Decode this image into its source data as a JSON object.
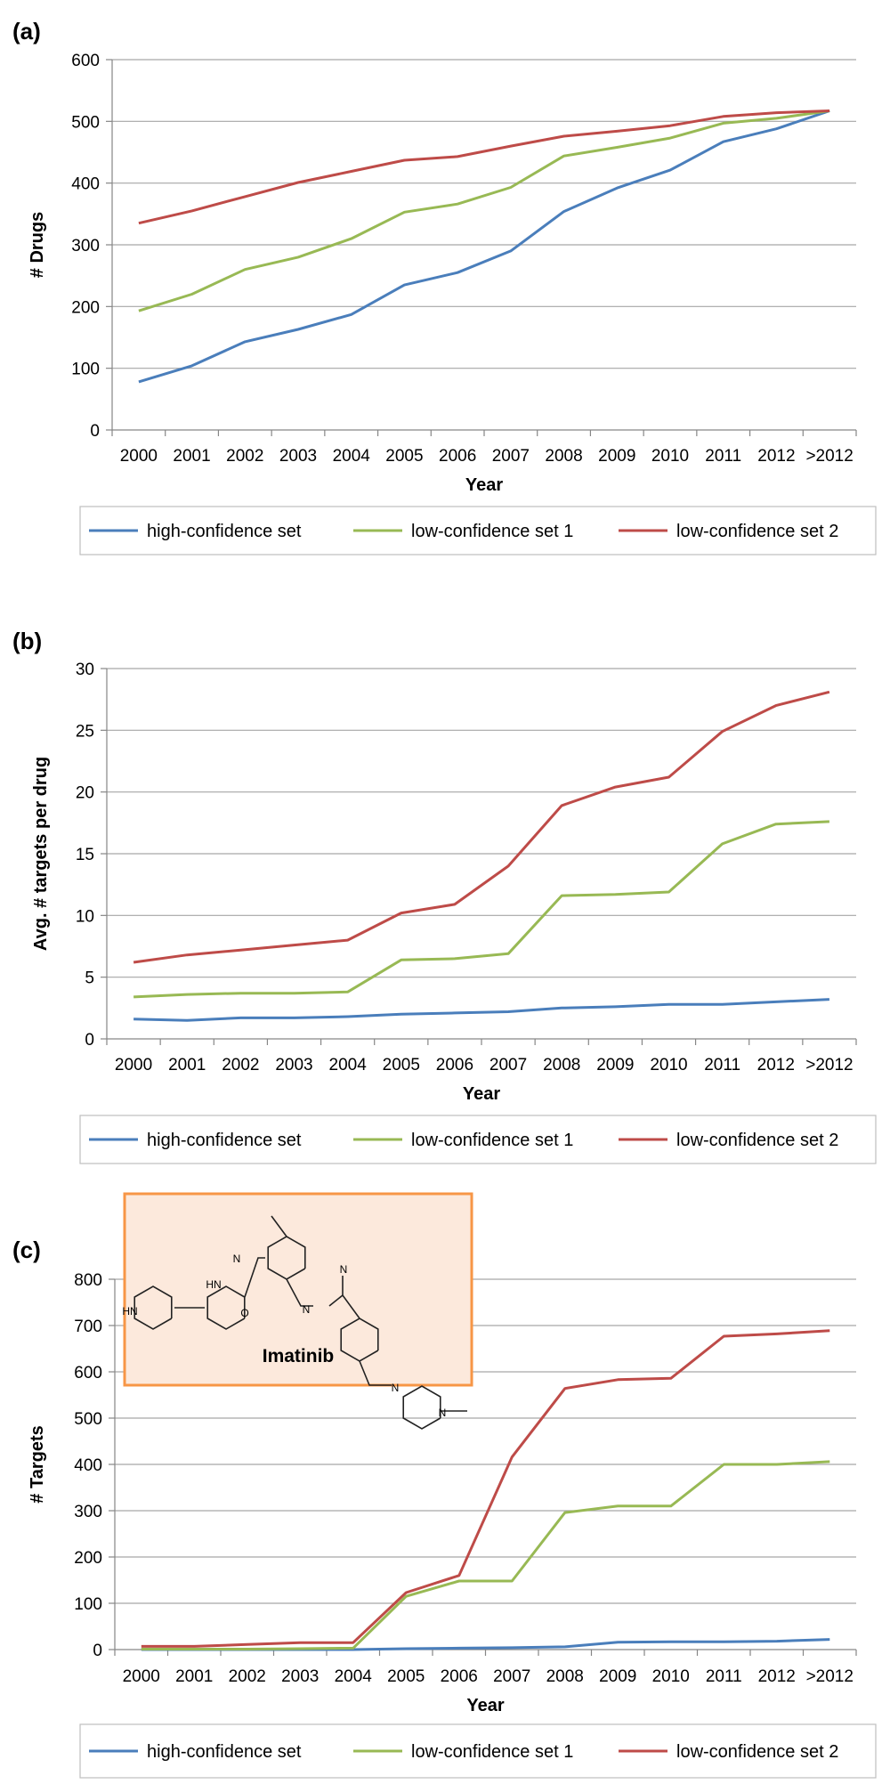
{
  "colors": {
    "high": "#4a7ebb",
    "low1": "#98b954",
    "low2": "#be4b48",
    "grid": "#a6a6a6",
    "inset_fill": "#fce9dc",
    "inset_border": "#f79646"
  },
  "chart_data": [
    {
      "type": "line",
      "panel_label": "(a)",
      "categories": [
        "2000",
        "2001",
        "2002",
        "2003",
        "2004",
        "2005",
        "2006",
        "2007",
        "2008",
        "2009",
        "2010",
        "2011",
        "2012",
        ">2012"
      ],
      "xlabel": "Year",
      "ylabel": "# Drugs",
      "ylim": [
        0,
        600
      ],
      "yticks": [
        "0",
        "100",
        "200",
        "300",
        "400",
        "500",
        "600"
      ],
      "grid": true,
      "legend_position": "bottom",
      "series": [
        {
          "name": "high-confidence set",
          "color_key": "high",
          "values": [
            78,
            104,
            143,
            163,
            187,
            235,
            255,
            290,
            354,
            392,
            421,
            467,
            488,
            517
          ]
        },
        {
          "name": "low-confidence set 1",
          "color_key": "low1",
          "values": [
            193,
            220,
            260,
            280,
            310,
            353,
            366,
            393,
            444,
            458,
            473,
            497,
            505,
            517
          ]
        },
        {
          "name": "low-confidence set 2",
          "color_key": "low2",
          "values": [
            335,
            355,
            378,
            401,
            419,
            437,
            443,
            460,
            476,
            484,
            493,
            508,
            514,
            517
          ]
        }
      ]
    },
    {
      "type": "line",
      "panel_label": "(b)",
      "categories": [
        "2000",
        "2001",
        "2002",
        "2003",
        "2004",
        "2005",
        "2006",
        "2007",
        "2008",
        "2009",
        "2010",
        "2011",
        "2012",
        ">2012"
      ],
      "xlabel": "Year",
      "ylabel": "Avg. # targets per drug",
      "ylim": [
        0,
        30
      ],
      "yticks": [
        "0",
        "5",
        "10",
        "15",
        "20",
        "25",
        "30"
      ],
      "grid": true,
      "legend_position": "bottom",
      "series": [
        {
          "name": "high-confidence set",
          "color_key": "high",
          "values": [
            1.6,
            1.5,
            1.7,
            1.7,
            1.8,
            2.0,
            2.1,
            2.2,
            2.5,
            2.6,
            2.8,
            2.8,
            3.0,
            3.2
          ]
        },
        {
          "name": "low-confidence set 1",
          "color_key": "low1",
          "values": [
            3.4,
            3.6,
            3.7,
            3.7,
            3.8,
            6.4,
            6.5,
            6.9,
            11.6,
            11.7,
            11.9,
            15.8,
            17.4,
            17.6
          ]
        },
        {
          "name": "low-confidence set 2",
          "color_key": "low2",
          "values": [
            6.2,
            6.8,
            7.2,
            7.6,
            8.0,
            10.2,
            10.9,
            14.0,
            18.9,
            20.4,
            21.2,
            24.9,
            27.0,
            28.1
          ]
        }
      ]
    },
    {
      "type": "line",
      "panel_label": "(c)",
      "categories": [
        "2000",
        "2001",
        "2002",
        "2003",
        "2004",
        "2005",
        "2006",
        "2007",
        "2008",
        "2009",
        "2010",
        "2011",
        "2012",
        ">2012"
      ],
      "xlabel": "Year",
      "ylabel": "# Targets",
      "ylim": [
        0,
        800
      ],
      "yticks": [
        "0",
        "100",
        "200",
        "300",
        "400",
        "500",
        "600",
        "700",
        "800"
      ],
      "grid": true,
      "legend_position": "bottom",
      "inset_label": "Imatinib",
      "inset_atoms": [
        "HN",
        "HN",
        "O",
        "N",
        "N",
        "N",
        "N",
        "N"
      ],
      "series": [
        {
          "name": "high-confidence set",
          "color_key": "high",
          "values": [
            0,
            0,
            0,
            0,
            0,
            2,
            3,
            4,
            6,
            16,
            17,
            17,
            18,
            22
          ]
        },
        {
          "name": "low-confidence set 1",
          "color_key": "low1",
          "values": [
            1,
            1,
            1,
            2,
            3,
            115,
            148,
            148,
            296,
            310,
            310,
            400,
            400,
            406
          ]
        },
        {
          "name": "low-confidence set 2",
          "color_key": "low2",
          "values": [
            7,
            7,
            11,
            15,
            15,
            123,
            160,
            416,
            564,
            583,
            586,
            677,
            682,
            689
          ]
        }
      ]
    }
  ]
}
